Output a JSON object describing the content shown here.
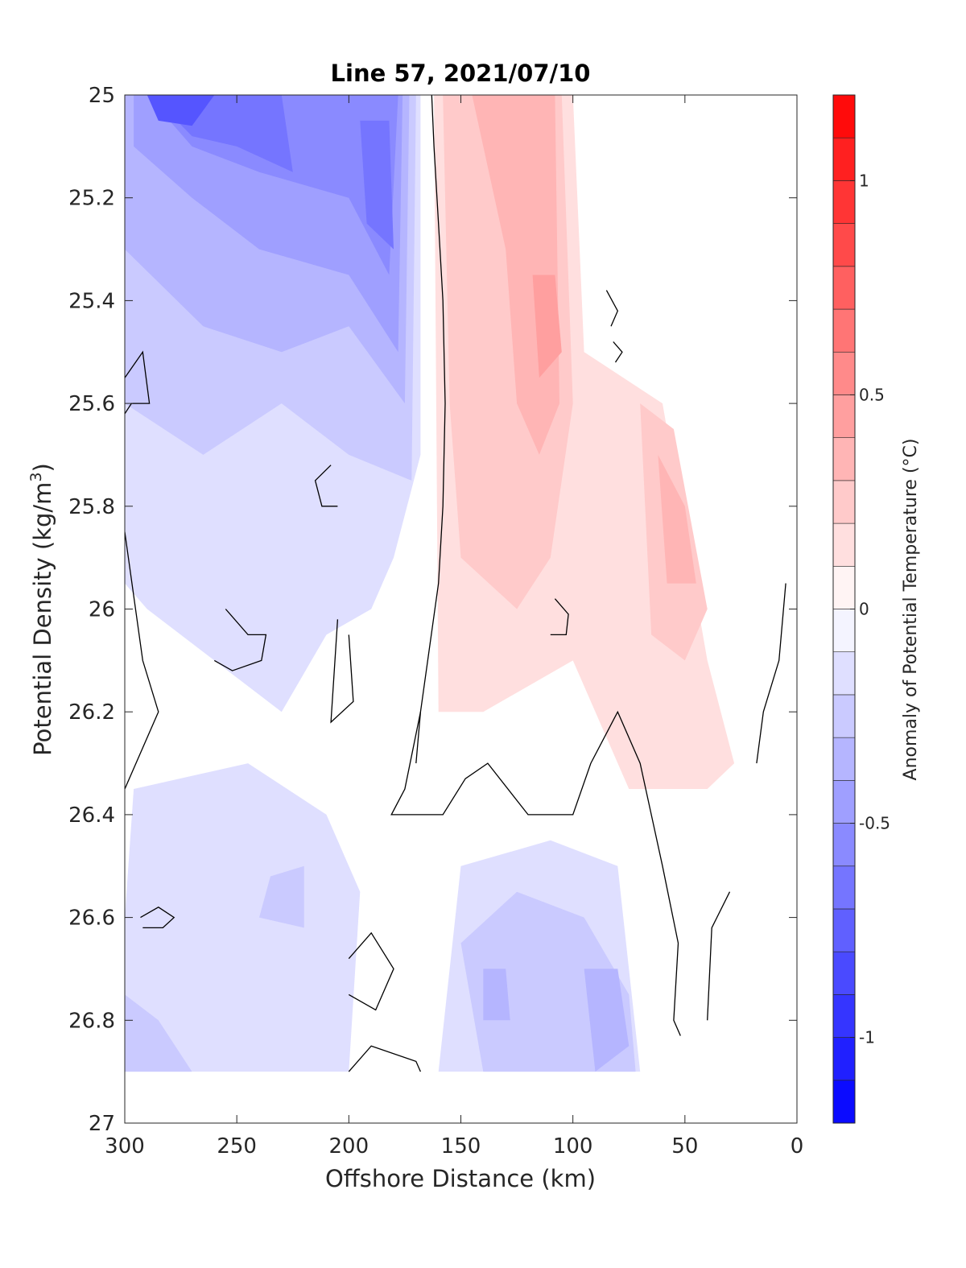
{
  "chart_data": {
    "type": "contour",
    "title": "Line 57, 2021/07/10",
    "xlabel": "Offshore Distance (km)",
    "ylabel_main": "Potential Density (kg/m",
    "ylabel_sup": "3",
    "ylabel_close": ")",
    "xlim": [
      300,
      0
    ],
    "ylim": [
      27,
      25
    ],
    "x_reversed": true,
    "y_reversed": true,
    "x_ticks": [
      300,
      250,
      200,
      150,
      100,
      50,
      0
    ],
    "x_tick_labels": [
      "300",
      "250",
      "200",
      "150",
      "100",
      "50",
      "0"
    ],
    "y_ticks": [
      25,
      25.2,
      25.4,
      25.6,
      25.8,
      26,
      26.2,
      26.4,
      26.6,
      26.8,
      27
    ],
    "y_tick_labels": [
      "25",
      "25.2",
      "25.4",
      "25.6",
      "25.8",
      "26",
      "26.2",
      "26.4",
      "26.6",
      "26.8",
      "27"
    ],
    "colorbar": {
      "label": "Anomaly of Potential Temperature (°C)",
      "range": [
        -1.2,
        1.2
      ],
      "step": 0.1,
      "ticks": [
        -1,
        -0.5,
        0,
        0.5,
        1
      ],
      "tick_labels": [
        "-1",
        "-0.5",
        "0",
        "0.5",
        "1"
      ],
      "low_color": "#0000ff",
      "mid_color": "#ffffff",
      "high_color": "#ff0000"
    },
    "zero_contour_color": "#000000",
    "regions": [
      {
        "anomaly": -0.15,
        "points": [
          [
            300,
            25
          ],
          [
            168,
            25
          ],
          [
            168,
            25.7
          ],
          [
            180,
            25.9
          ],
          [
            190,
            26
          ],
          [
            210,
            26.05
          ],
          [
            230,
            26.2
          ],
          [
            260,
            26.1
          ],
          [
            290,
            26
          ],
          [
            300,
            25.95
          ]
        ]
      },
      {
        "anomaly": -0.25,
        "points": [
          [
            300,
            25
          ],
          [
            170,
            25
          ],
          [
            172,
            25.75
          ],
          [
            200,
            25.7
          ],
          [
            230,
            25.6
          ],
          [
            265,
            25.7
          ],
          [
            300,
            25.6
          ]
        ]
      },
      {
        "anomaly": -0.35,
        "points": [
          [
            300,
            25
          ],
          [
            173,
            25
          ],
          [
            175,
            25.6
          ],
          [
            200,
            25.45
          ],
          [
            230,
            25.5
          ],
          [
            265,
            25.45
          ],
          [
            300,
            25.3
          ]
        ]
      },
      {
        "anomaly": -0.45,
        "points": [
          [
            296,
            25
          ],
          [
            176,
            25
          ],
          [
            178,
            25.5
          ],
          [
            200,
            25.35
          ],
          [
            240,
            25.3
          ],
          [
            270,
            25.2
          ],
          [
            296,
            25.1
          ]
        ]
      },
      {
        "anomaly": -0.55,
        "points": [
          [
            290,
            25
          ],
          [
            178,
            25
          ],
          [
            182,
            25.35
          ],
          [
            200,
            25.2
          ],
          [
            240,
            25.15
          ],
          [
            270,
            25.1
          ]
        ]
      },
      {
        "anomaly": -0.65,
        "points": [
          [
            288,
            25
          ],
          [
            230,
            25
          ],
          [
            225,
            25.15
          ],
          [
            250,
            25.1
          ],
          [
            270,
            25.08
          ]
        ]
      },
      {
        "anomaly": -0.65,
        "points": [
          [
            195,
            25.05
          ],
          [
            182,
            25.05
          ],
          [
            180,
            25.3
          ],
          [
            192,
            25.25
          ]
        ]
      },
      {
        "anomaly": -0.8,
        "points": [
          [
            290,
            25
          ],
          [
            260,
            25
          ],
          [
            270,
            25.06
          ],
          [
            285,
            25.05
          ]
        ]
      },
      {
        "anomaly": 0.15,
        "points": [
          [
            162,
            25
          ],
          [
            100,
            25
          ],
          [
            95,
            25.5
          ],
          [
            60,
            25.6
          ],
          [
            40,
            26.1
          ],
          [
            28,
            26.3
          ],
          [
            40,
            26.35
          ],
          [
            75,
            26.35
          ],
          [
            100,
            26.1
          ],
          [
            140,
            26.2
          ],
          [
            160,
            26.2
          ]
        ]
      },
      {
        "anomaly": 0.25,
        "points": [
          [
            158,
            25
          ],
          [
            105,
            25
          ],
          [
            100,
            25.6
          ],
          [
            110,
            25.9
          ],
          [
            125,
            26
          ],
          [
            150,
            25.9
          ],
          [
            155,
            25.6
          ]
        ]
      },
      {
        "anomaly": 0.25,
        "points": [
          [
            70,
            25.6
          ],
          [
            55,
            25.65
          ],
          [
            40,
            26
          ],
          [
            50,
            26.1
          ],
          [
            65,
            26.05
          ]
        ]
      },
      {
        "anomaly": 0.35,
        "points": [
          [
            145,
            25
          ],
          [
            108,
            25
          ],
          [
            106,
            25.6
          ],
          [
            115,
            25.7
          ],
          [
            125,
            25.6
          ],
          [
            130,
            25.3
          ]
        ]
      },
      {
        "anomaly": 0.35,
        "points": [
          [
            62,
            25.7
          ],
          [
            50,
            25.8
          ],
          [
            45,
            25.95
          ],
          [
            58,
            25.95
          ]
        ]
      },
      {
        "anomaly": 0.45,
        "points": [
          [
            118,
            25.35
          ],
          [
            108,
            25.35
          ],
          [
            105,
            25.5
          ],
          [
            115,
            25.55
          ]
        ]
      },
      {
        "anomaly": -0.15,
        "points": [
          [
            296,
            26.35
          ],
          [
            245,
            26.3
          ],
          [
            210,
            26.4
          ],
          [
            195,
            26.55
          ],
          [
            200,
            26.9
          ],
          [
            160,
            26.9
          ],
          [
            150,
            26.5
          ],
          [
            110,
            26.45
          ],
          [
            80,
            26.5
          ],
          [
            70,
            26.9
          ],
          [
            300,
            26.9
          ],
          [
            300,
            26.6
          ]
        ]
      },
      {
        "anomaly": -0.25,
        "points": [
          [
            300,
            26.75
          ],
          [
            285,
            26.8
          ],
          [
            270,
            26.9
          ],
          [
            300,
            26.9
          ]
        ]
      },
      {
        "anomaly": -0.25,
        "points": [
          [
            240,
            26.6
          ],
          [
            220,
            26.62
          ],
          [
            220,
            26.5
          ],
          [
            235,
            26.52
          ]
        ]
      },
      {
        "anomaly": -0.25,
        "points": [
          [
            150,
            26.65
          ],
          [
            125,
            26.55
          ],
          [
            95,
            26.6
          ],
          [
            75,
            26.75
          ],
          [
            72,
            26.9
          ],
          [
            140,
            26.9
          ]
        ]
      },
      {
        "anomaly": -0.35,
        "points": [
          [
            140,
            26.7
          ],
          [
            130,
            26.7
          ],
          [
            128,
            26.8
          ],
          [
            140,
            26.8
          ]
        ]
      },
      {
        "anomaly": -0.35,
        "points": [
          [
            95,
            26.7
          ],
          [
            80,
            26.7
          ],
          [
            75,
            26.85
          ],
          [
            90,
            26.9
          ]
        ]
      }
    ],
    "zero_contours": [
      {
        "points": [
          [
            163,
            25
          ],
          [
            162,
            25.1
          ],
          [
            160,
            25.25
          ],
          [
            158,
            25.4
          ],
          [
            157,
            25.6
          ],
          [
            158,
            25.8
          ],
          [
            160,
            25.95
          ],
          [
            168,
            26.2
          ],
          [
            170,
            26.3
          ],
          [
            170,
            26.3
          ]
        ]
      },
      {
        "points": [
          [
            168,
            26.2
          ],
          [
            175,
            26.35
          ],
          [
            181,
            26.4
          ],
          [
            158,
            26.4
          ],
          [
            148,
            26.33
          ],
          [
            138,
            26.3
          ],
          [
            120,
            26.4
          ],
          [
            100,
            26.4
          ],
          [
            92,
            26.3
          ],
          [
            80,
            26.2
          ],
          [
            70,
            26.3
          ],
          [
            60,
            26.5
          ],
          [
            53,
            26.65
          ],
          [
            55,
            26.8
          ],
          [
            52,
            26.83
          ]
        ]
      },
      {
        "points": [
          [
            300,
            25.55
          ],
          [
            292,
            25.5
          ],
          [
            289,
            25.6
          ],
          [
            297,
            25.6
          ],
          [
            300,
            25.62
          ]
        ]
      },
      {
        "points": [
          [
            300,
            25.85
          ],
          [
            292,
            26.1
          ],
          [
            285,
            26.2
          ],
          [
            300,
            26.35
          ]
        ]
      },
      {
        "points": [
          [
            255,
            26
          ],
          [
            245,
            26.05
          ],
          [
            237,
            26.05
          ],
          [
            239,
            26.1
          ],
          [
            252,
            26.12
          ],
          [
            260,
            26.1
          ]
        ]
      },
      {
        "points": [
          [
            208,
            25.72
          ],
          [
            215,
            25.75
          ],
          [
            212,
            25.8
          ],
          [
            205,
            25.8
          ]
        ]
      },
      {
        "points": [
          [
            205,
            26.02
          ],
          [
            208,
            26.22
          ],
          [
            198,
            26.18
          ],
          [
            200,
            26.05
          ]
        ]
      },
      {
        "points": [
          [
            200,
            26.68
          ],
          [
            190,
            26.63
          ],
          [
            180,
            26.7
          ],
          [
            188,
            26.78
          ],
          [
            200,
            26.75
          ]
        ]
      },
      {
        "points": [
          [
            200,
            26.9
          ],
          [
            190,
            26.85
          ],
          [
            170,
            26.88
          ],
          [
            168,
            26.9
          ]
        ]
      },
      {
        "points": [
          [
            108,
            25.98
          ],
          [
            102,
            26.01
          ],
          [
            103,
            26.05
          ],
          [
            110,
            26.05
          ]
        ]
      },
      {
        "points": [
          [
            293,
            26.6
          ],
          [
            285,
            26.58
          ],
          [
            278,
            26.6
          ],
          [
            283,
            26.62
          ],
          [
            292,
            26.62
          ]
        ]
      },
      {
        "points": [
          [
            85,
            25.38
          ],
          [
            80,
            25.42
          ],
          [
            83,
            25.45
          ]
        ]
      },
      {
        "points": [
          [
            82,
            25.48
          ],
          [
            78,
            25.5
          ],
          [
            81,
            25.52
          ]
        ]
      },
      {
        "points": [
          [
            30,
            26.55
          ],
          [
            38,
            26.62
          ],
          [
            40,
            26.8
          ]
        ]
      },
      {
        "points": [
          [
            5,
            25.95
          ],
          [
            8,
            26.1
          ],
          [
            15,
            26.2
          ],
          [
            18,
            26.3
          ]
        ]
      }
    ]
  }
}
